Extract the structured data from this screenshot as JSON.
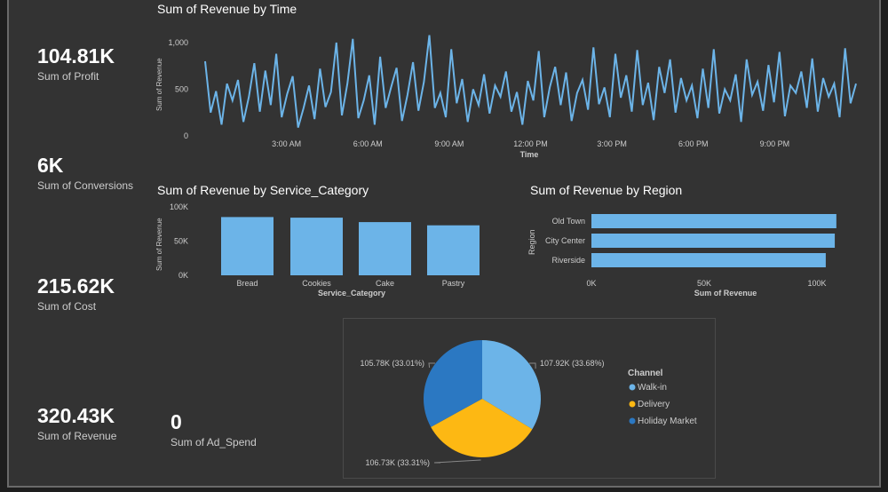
{
  "kpis": [
    {
      "value": "104.81K",
      "label": "Sum of Profit"
    },
    {
      "value": "6K",
      "label": "Sum of Conversions"
    },
    {
      "value": "215.62K",
      "label": "Sum of Cost"
    },
    {
      "value": "320.43K",
      "label": "Sum of Revenue"
    },
    {
      "value": "0",
      "label": "Sum of Ad_Spend"
    }
  ],
  "chart_data": [
    {
      "type": "line",
      "title": "Sum of Revenue by Time",
      "xlabel": "Time",
      "ylabel": "Sum of Revenue",
      "ylim": [
        0,
        1050
      ],
      "yticks": [
        "0",
        "500",
        "1,000"
      ],
      "ytick_values": [
        0,
        500,
        1000
      ],
      "xticks": [
        "3:00 AM",
        "6:00 AM",
        "9:00 AM",
        "12:00 PM",
        "3:00 PM",
        "6:00 PM",
        "9:00 PM"
      ],
      "xrange_hours": [
        0,
        24
      ],
      "color": "#6cb4e8",
      "values": [
        800,
        250,
        480,
        120,
        560,
        380,
        600,
        150,
        420,
        780,
        260,
        700,
        330,
        880,
        200,
        450,
        640,
        90,
        300,
        540,
        180,
        720,
        310,
        470,
        1000,
        220,
        560,
        1040,
        190,
        380,
        650,
        120,
        850,
        300,
        520,
        730,
        160,
        440,
        790,
        270,
        580,
        1080,
        300,
        460,
        200,
        930,
        350,
        610,
        150,
        500,
        330,
        660,
        240,
        540,
        420,
        690,
        260,
        470,
        120,
        590,
        380,
        910,
        200,
        520,
        740,
        330,
        680,
        160,
        460,
        600,
        280,
        950,
        340,
        520,
        200,
        880,
        410,
        650,
        260,
        920,
        330,
        570,
        170,
        740,
        460,
        820,
        250,
        620,
        380,
        540,
        190,
        720,
        300,
        930,
        240,
        500,
        380,
        660,
        150,
        820,
        440,
        580,
        270,
        760,
        360,
        900,
        210,
        540,
        460,
        690,
        300,
        830,
        260,
        620,
        420,
        560,
        200,
        940,
        350,
        560
      ],
      "grid": false
    },
    {
      "type": "bar",
      "title": "Sum of Revenue by Service_Category",
      "xlabel": "Service_Category",
      "ylabel": "Sum of Revenue",
      "categories": [
        "Bread",
        "Cookies",
        "Cake",
        "Pastry"
      ],
      "values": [
        85200,
        84300,
        77800,
        73100
      ],
      "ylim": [
        0,
        100000
      ],
      "yticks": [
        "0K",
        "50K",
        "100K"
      ],
      "ytick_values": [
        0,
        50000,
        100000
      ],
      "color": "#6cb4e8"
    },
    {
      "type": "bar",
      "orientation": "horizontal",
      "title": "Sum of Revenue by Region",
      "xlabel": "Sum of Revenue",
      "ylabel": "Region",
      "categories": [
        "Old Town",
        "City Center",
        "Riverside"
      ],
      "values": [
        108600,
        107900,
        103900
      ],
      "xlim": [
        0,
        100000
      ],
      "xticks": [
        "0K",
        "50K",
        "100K"
      ],
      "xtick_values": [
        0,
        50000,
        100000
      ],
      "color": "#6cb4e8"
    },
    {
      "type": "pie",
      "legend_title": "Channel",
      "legend_position": "right",
      "slices": [
        {
          "name": "Walk-in",
          "value": 107920,
          "label": "107.92K (33.68%)",
          "color": "#6cb4e8"
        },
        {
          "name": "Delivery",
          "value": 106730,
          "label": "106.73K (33.31%)",
          "color": "#fdb813"
        },
        {
          "name": "Holiday Market",
          "value": 105780,
          "label": "105.78K (33.01%)",
          "color": "#2b78c2"
        }
      ]
    }
  ]
}
